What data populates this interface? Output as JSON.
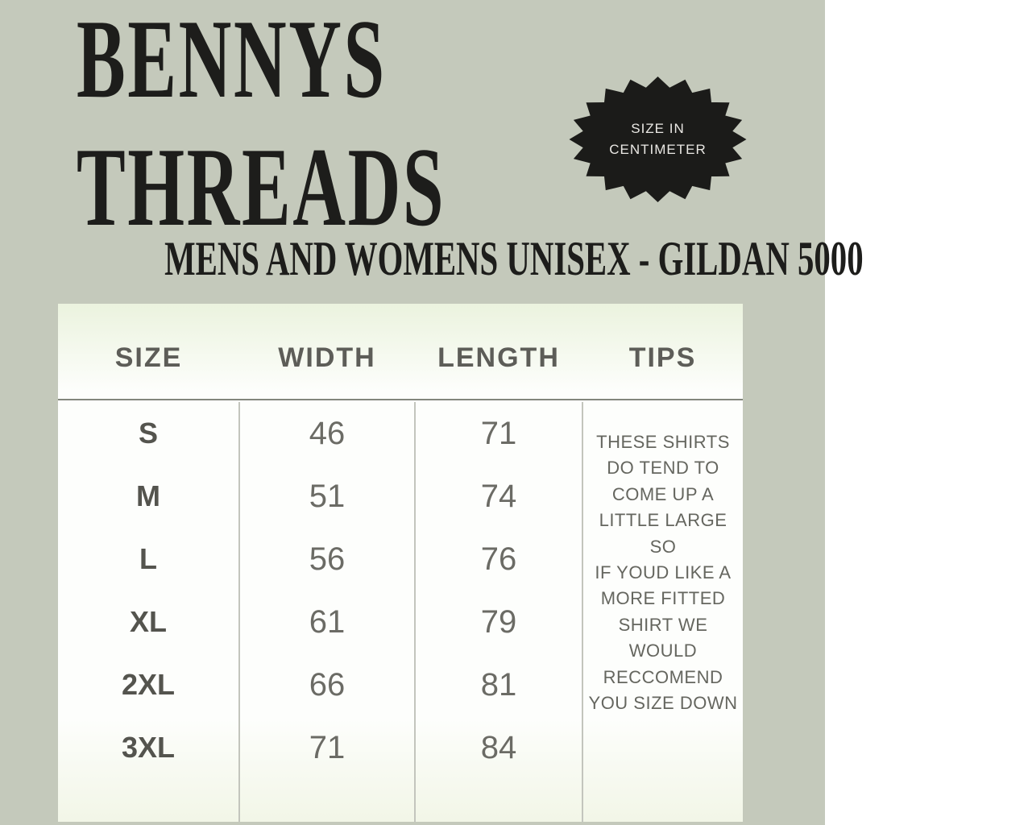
{
  "colors": {
    "background": "#c4c9bb",
    "title-text": "#1d1d1b",
    "badge-bg": "#1b1b19",
    "badge-text": "#eae8e4",
    "table-bg": "#fdfefc",
    "table-top-tint": "#ebf3de",
    "table-bottom-tint": "#f2f6e7",
    "header-text": "#5d5d58",
    "header-rule": "#83867d",
    "divider": "#c3c5bd",
    "size-text": "#54544e",
    "value-text": "#6b6b65",
    "tips-text": "#65665f"
  },
  "header": {
    "title_line1": "BENNYS",
    "title_line2": "THREADS",
    "subtitle": "MENS AND WOMENS UNISEX - GILDAN 5000"
  },
  "badge": {
    "line1": "SIZE IN",
    "line2": "CENTIMETER"
  },
  "chart_data": {
    "type": "table",
    "title": "BENNYS THREADS",
    "subtitle": "MENS AND WOMENS UNISEX - GILDAN 5000",
    "unit": "SIZE IN CENTIMETER",
    "columns": [
      "SIZE",
      "WIDTH",
      "LENGTH",
      "TIPS"
    ],
    "rows": [
      {
        "size": "S",
        "width": 46,
        "length": 71
      },
      {
        "size": "M",
        "width": 51,
        "length": 74
      },
      {
        "size": "L",
        "width": 56,
        "length": 76
      },
      {
        "size": "XL",
        "width": 61,
        "length": 79
      },
      {
        "size": "2XL",
        "width": 66,
        "length": 81
      },
      {
        "size": "3XL",
        "width": 71,
        "length": 84
      }
    ],
    "tips": "THESE SHIRTS\nDO TEND TO\nCOME UP A\nLITTLE LARGE SO\nIF YOUD LIKE A\nMORE FITTED\nSHIRT WE\nWOULD\nRECCOMEND\nYOU SIZE DOWN"
  }
}
